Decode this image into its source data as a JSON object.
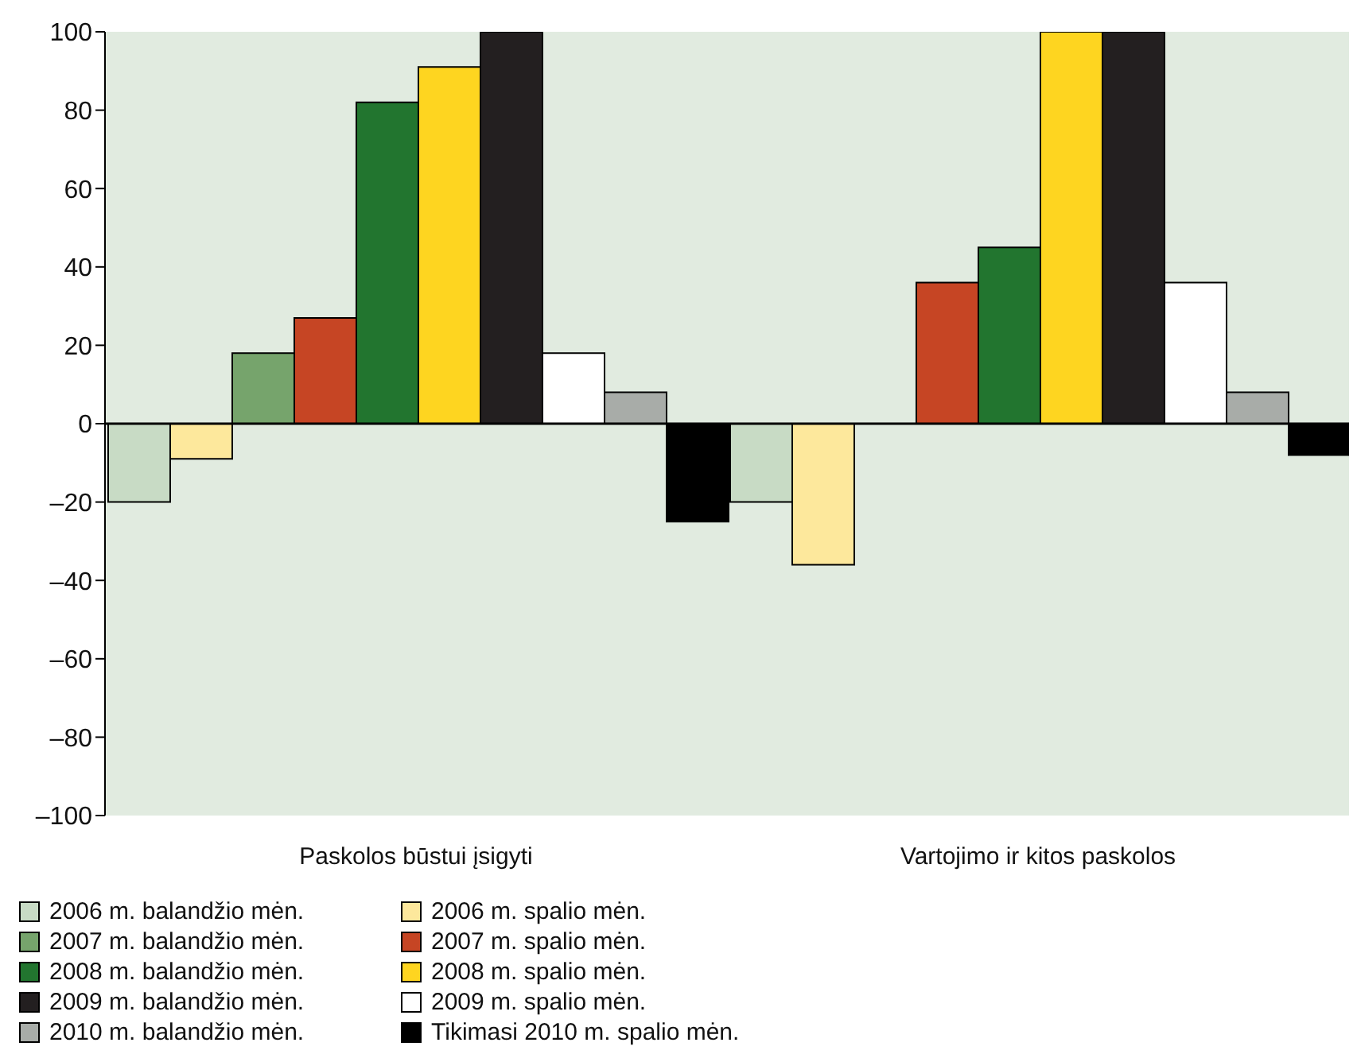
{
  "chart_data": {
    "type": "bar",
    "categories": [
      "Paskolos būstui įsigyti",
      "Vartojimo ir kitos paskolos"
    ],
    "series": [
      {
        "name": "2006 m. balandžio mėn.",
        "color": "#c8dbc5",
        "values": [
          -20,
          -20
        ]
      },
      {
        "name": "2006 m. spalio mėn.",
        "color": "#fde89c",
        "values": [
          -9,
          -36
        ]
      },
      {
        "name": "2007 m. balandžio mėn.",
        "color": "#76a46c",
        "values": [
          18,
          0
        ]
      },
      {
        "name": "2007 m. spalio mėn.",
        "color": "#c64524",
        "values": [
          27,
          36
        ]
      },
      {
        "name": "2008 m. balandžio mėn.",
        "color": "#22752f",
        "values": [
          82,
          45
        ]
      },
      {
        "name": "2008 m. spalio mėn.",
        "color": "#fed520",
        "values": [
          91,
          100
        ]
      },
      {
        "name": "2009 m. balandžio mėn.",
        "color": "#231f20",
        "values": [
          100,
          100
        ]
      },
      {
        "name": "2009 m. spalio mėn.",
        "color": "#ffffff",
        "values": [
          18,
          36
        ]
      },
      {
        "name": "2010 m. balandžio mėn.",
        "color": "#a8aca8",
        "values": [
          8,
          8
        ]
      },
      {
        "name": "Tikimasi 2010 m. spalio mėn.",
        "color": "#000000",
        "values": [
          -25,
          -8
        ]
      }
    ],
    "ylim": [
      -100,
      100
    ],
    "yticks": [
      {
        "value": -100,
        "label": "–100"
      },
      {
        "value": -80,
        "label": "–80"
      },
      {
        "value": -60,
        "label": "–60"
      },
      {
        "value": -40,
        "label": "–40"
      },
      {
        "value": -20,
        "label": "–20"
      },
      0,
      20,
      40,
      60,
      80,
      100
    ],
    "ref_lines": [
      {
        "axis": "y",
        "value": 0,
        "color": "#000000"
      }
    ],
    "grid": false,
    "legend": "bottom"
  }
}
